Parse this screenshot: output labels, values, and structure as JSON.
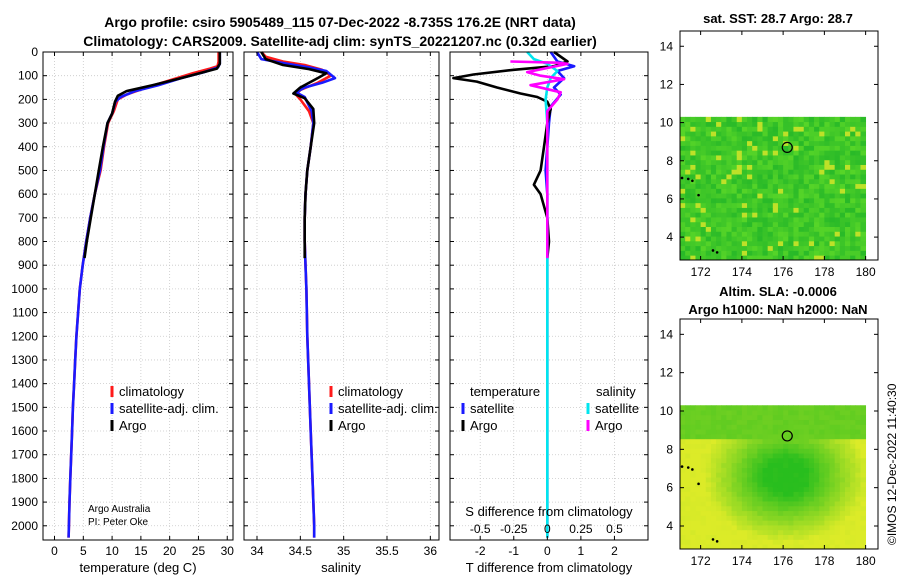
{
  "titles": {
    "line1": "Argo profile: csiro 5905489_115 07-Dec-2022 -8.735S 176.2E (NRT data)",
    "line2": "Climatology: CARS2009. Satellite-adj clim: synTS_20221207.nc (0.32d earlier)",
    "sst": "sat. SST: 28.7 Argo: 28.7",
    "sla1": "Altim. SLA: -0.0006",
    "sla2": "Argo h1000: NaN h2000: NaN",
    "credit": "©IMOS 12-Dec-2022 11:40:30"
  },
  "attribution": {
    "line1": "Argo Australia",
    "line2": "PI: Peter Oke"
  },
  "colors": {
    "clim": "#ff1a1a",
    "sat": "#1a1aff",
    "argo": "#000000",
    "sat_s": "#00e5ee",
    "argo_s": "#ff00ff",
    "grid": "#c8c8c8"
  },
  "chart_data": [
    {
      "type": "line",
      "name": "temperature",
      "xlabel": "temperature (deg C)",
      "ylabel": "",
      "xlim": [
        -2,
        31
      ],
      "ylim": [
        2060,
        0
      ],
      "xticks": [
        0,
        5,
        10,
        15,
        20,
        25,
        30
      ],
      "yticks": [
        0,
        100,
        200,
        300,
        400,
        500,
        600,
        700,
        800,
        900,
        1000,
        1100,
        1200,
        1300,
        1400,
        1500,
        1600,
        1700,
        1800,
        1900,
        2000
      ],
      "legend": [
        "climatology",
        "satellite-adj. clim.",
        "Argo"
      ],
      "series": [
        {
          "name": "climatology",
          "color": "#ff1a1a",
          "points": [
            [
              28.5,
              0
            ],
            [
              28.5,
              40
            ],
            [
              28.3,
              60
            ],
            [
              27,
              70
            ],
            [
              24,
              90
            ],
            [
              20,
              120
            ],
            [
              16,
              150
            ],
            [
              12.5,
              180
            ],
            [
              11,
              200
            ],
            [
              10.3,
              250
            ],
            [
              9.3,
              300
            ],
            [
              8.6,
              400
            ],
            [
              8,
              500
            ],
            [
              7,
              600
            ],
            [
              6.2,
              700
            ],
            [
              5.5,
              800
            ],
            [
              4.9,
              900
            ],
            [
              4.4,
              1000
            ],
            [
              4.1,
              1100
            ],
            [
              3.8,
              1200
            ],
            [
              3.6,
              1300
            ],
            [
              3.4,
              1400
            ],
            [
              3.2,
              1500
            ],
            [
              3.05,
              1600
            ],
            [
              2.9,
              1700
            ],
            [
              2.75,
              1800
            ],
            [
              2.6,
              1900
            ],
            [
              2.5,
              2000
            ],
            [
              2.45,
              2050
            ]
          ]
        },
        {
          "name": "satellite-adj. clim.",
          "color": "#1a1aff",
          "points": [
            [
              28.7,
              0
            ],
            [
              28.7,
              50
            ],
            [
              28.4,
              65
            ],
            [
              26,
              85
            ],
            [
              22,
              110
            ],
            [
              18,
              140
            ],
            [
              14,
              165
            ],
            [
              11.5,
              190
            ],
            [
              10.6,
              210
            ],
            [
              10,
              260
            ],
            [
              9.2,
              300
            ],
            [
              8.5,
              400
            ],
            [
              7.9,
              500
            ],
            [
              7,
              600
            ],
            [
              6.2,
              700
            ],
            [
              5.5,
              800
            ],
            [
              4.9,
              900
            ],
            [
              4.4,
              1000
            ],
            [
              4.1,
              1100
            ],
            [
              3.8,
              1200
            ],
            [
              3.6,
              1300
            ],
            [
              3.4,
              1400
            ],
            [
              3.2,
              1500
            ],
            [
              3.05,
              1600
            ],
            [
              2.9,
              1700
            ],
            [
              2.75,
              1800
            ],
            [
              2.6,
              1900
            ],
            [
              2.5,
              2000
            ],
            [
              2.45,
              2050
            ]
          ]
        },
        {
          "name": "Argo",
          "color": "#000000",
          "points": [
            [
              28.7,
              0
            ],
            [
              28.7,
              50
            ],
            [
              28.2,
              70
            ],
            [
              22,
              110
            ],
            [
              17,
              140
            ],
            [
              12.5,
              165
            ],
            [
              11,
              185
            ],
            [
              10.5,
              210
            ],
            [
              10,
              260
            ],
            [
              9.2,
              300
            ],
            [
              8.4,
              400
            ],
            [
              7.7,
              500
            ],
            [
              7,
              600
            ],
            [
              6.3,
              700
            ],
            [
              5.6,
              800
            ],
            [
              5.2,
              870
            ]
          ]
        }
      ]
    },
    {
      "type": "line",
      "name": "salinity",
      "xlabel": "salinity",
      "ylabel": "",
      "xlim": [
        33.85,
        36.1
      ],
      "ylim": [
        2060,
        0
      ],
      "xticks": [
        34,
        34.5,
        35,
        35.5,
        36
      ],
      "legend": [
        "climatology",
        "satellite-adj. clim.",
        "Argo"
      ],
      "series": [
        {
          "name": "climatology",
          "color": "#ff1a1a",
          "points": [
            [
              34.05,
              0
            ],
            [
              34.1,
              20
            ],
            [
              34.3,
              40
            ],
            [
              34.55,
              55
            ],
            [
              34.75,
              75
            ],
            [
              34.85,
              100
            ],
            [
              34.7,
              130
            ],
            [
              34.5,
              160
            ],
            [
              34.45,
              180
            ],
            [
              34.5,
              200
            ],
            [
              34.6,
              250
            ],
            [
              34.65,
              300
            ],
            [
              34.62,
              400
            ],
            [
              34.58,
              500
            ],
            [
              34.56,
              600
            ],
            [
              34.55,
              700
            ],
            [
              34.55,
              800
            ],
            [
              34.56,
              900
            ],
            [
              34.57,
              1000
            ],
            [
              34.58,
              1200
            ],
            [
              34.6,
              1400
            ],
            [
              34.62,
              1600
            ],
            [
              34.64,
              1800
            ],
            [
              34.66,
              2000
            ],
            [
              34.66,
              2050
            ]
          ]
        },
        {
          "name": "satellite-adj. clim.",
          "color": "#1a1aff",
          "points": [
            [
              34.0,
              0
            ],
            [
              34.05,
              30
            ],
            [
              34.35,
              50
            ],
            [
              34.6,
              65
            ],
            [
              34.8,
              80
            ],
            [
              34.9,
              110
            ],
            [
              34.75,
              130
            ],
            [
              34.55,
              150
            ],
            [
              34.45,
              170
            ],
            [
              34.55,
              190
            ],
            [
              34.63,
              250
            ],
            [
              34.65,
              300
            ],
            [
              34.62,
              400
            ],
            [
              34.58,
              500
            ],
            [
              34.56,
              600
            ],
            [
              34.55,
              700
            ],
            [
              34.55,
              800
            ],
            [
              34.56,
              900
            ],
            [
              34.57,
              1000
            ],
            [
              34.58,
              1200
            ],
            [
              34.6,
              1400
            ],
            [
              34.62,
              1600
            ],
            [
              34.64,
              1800
            ],
            [
              34.66,
              2000
            ],
            [
              34.66,
              2050
            ]
          ]
        },
        {
          "name": "Argo",
          "color": "#000000",
          "points": [
            [
              34.05,
              0
            ],
            [
              34.1,
              30
            ],
            [
              34.3,
              55
            ],
            [
              34.6,
              72
            ],
            [
              34.8,
              90
            ],
            [
              34.7,
              110
            ],
            [
              34.5,
              150
            ],
            [
              34.42,
              175
            ],
            [
              34.55,
              195
            ],
            [
              34.65,
              240
            ],
            [
              34.66,
              300
            ],
            [
              34.62,
              400
            ],
            [
              34.58,
              500
            ],
            [
              34.56,
              600
            ],
            [
              34.55,
              700
            ],
            [
              34.55,
              800
            ],
            [
              34.55,
              870
            ]
          ]
        }
      ]
    },
    {
      "type": "line",
      "name": "difference from climatology",
      "xlabel": "T difference from climatology",
      "xlabel2": "S difference from climatology",
      "xlim": [
        -2.9,
        3.0
      ],
      "ylim": [
        2060,
        0
      ],
      "xticks": [
        -2,
        -1,
        0,
        1,
        2
      ],
      "xticks2": [
        -0.5,
        -0.25,
        0,
        0.25,
        0.5
      ],
      "legend_groups": [
        "temperature",
        "salinity"
      ],
      "legend": [
        "satellite",
        "Argo",
        "satellite",
        "Argo"
      ],
      "series": [
        {
          "name": "temperature satellite",
          "color": "#1a1aff",
          "points": [
            [
              0.1,
              0
            ],
            [
              0.3,
              40
            ],
            [
              0.8,
              60
            ],
            [
              0.3,
              80
            ],
            [
              0.5,
              110
            ],
            [
              0.2,
              150
            ],
            [
              0.4,
              180
            ],
            [
              0.1,
              230
            ],
            [
              0.05,
              300
            ],
            [
              0,
              400
            ],
            [
              -0.05,
              500
            ],
            [
              0,
              600
            ],
            [
              0,
              800
            ],
            [
              0,
              1000
            ],
            [
              0,
              1400
            ],
            [
              0,
              2000
            ],
            [
              0,
              2050
            ]
          ]
        },
        {
          "name": "temperature Argo",
          "color": "#000000",
          "points": [
            [
              0.2,
              0
            ],
            [
              0.6,
              40
            ],
            [
              0.2,
              60
            ],
            [
              -1.0,
              75
            ],
            [
              -2.2,
              95
            ],
            [
              -2.8,
              110
            ],
            [
              -2.1,
              125
            ],
            [
              -1.5,
              150
            ],
            [
              -0.8,
              175
            ],
            [
              -0.3,
              190
            ],
            [
              0,
              210
            ],
            [
              0.1,
              240
            ],
            [
              0,
              300
            ],
            [
              -0.1,
              400
            ],
            [
              -0.2,
              500
            ],
            [
              -0.4,
              560
            ],
            [
              -0.2,
              600
            ],
            [
              0,
              700
            ],
            [
              0.05,
              800
            ],
            [
              0,
              870
            ]
          ]
        },
        {
          "name": "salinity satellite",
          "color": "#00e5ee",
          "points": [
            [
              -0.6,
              0
            ],
            [
              -0.4,
              30
            ],
            [
              0,
              50
            ],
            [
              0.3,
              80
            ],
            [
              0.1,
              110
            ],
            [
              0,
              150
            ],
            [
              -0.05,
              200
            ],
            [
              0,
              300
            ],
            [
              0,
              500
            ],
            [
              0,
              700
            ],
            [
              0,
              900
            ],
            [
              0,
              1200
            ],
            [
              0,
              1500
            ],
            [
              0,
              1800
            ],
            [
              0,
              2050
            ]
          ]
        },
        {
          "name": "salinity Argo",
          "color": "#ff00ff",
          "points": [
            [
              -1.1,
              40
            ],
            [
              0.3,
              45
            ],
            [
              0.6,
              50
            ],
            [
              -0.6,
              85
            ],
            [
              -0.2,
              100
            ],
            [
              0.5,
              115
            ],
            [
              -0.5,
              140
            ],
            [
              0.4,
              170
            ],
            [
              0.3,
              200
            ],
            [
              0,
              250
            ],
            [
              0,
              400
            ],
            [
              0,
              870
            ]
          ]
        }
      ]
    },
    {
      "type": "heatmap",
      "name": "sat. SST",
      "title": "sat. SST: 28.7 Argo: 28.7",
      "xlim": [
        171,
        180.6
      ],
      "ylim": [
        2.8,
        14.8
      ],
      "xticks": [
        172,
        174,
        176,
        178,
        180
      ],
      "yticks": [
        4,
        6,
        8,
        10,
        12,
        14
      ],
      "field_extent": {
        "lon": [
          171,
          180
        ],
        "lat": [
          2.8,
          10.1
        ]
      },
      "profile_location": [
        176.2,
        8.7
      ]
    },
    {
      "type": "heatmap",
      "name": "altimetry SLA",
      "title": "Altim. SLA: -0.0006",
      "xlim": [
        171,
        180.6
      ],
      "ylim": [
        2.8,
        14.8
      ],
      "xticks": [
        172,
        174,
        176,
        178,
        180
      ],
      "yticks": [
        4,
        6,
        8,
        10,
        12,
        14
      ],
      "field_extent": {
        "lon": [
          171,
          180
        ],
        "lat": [
          2.8,
          10.1
        ]
      },
      "profile_location": [
        176.2,
        8.7
      ]
    }
  ]
}
